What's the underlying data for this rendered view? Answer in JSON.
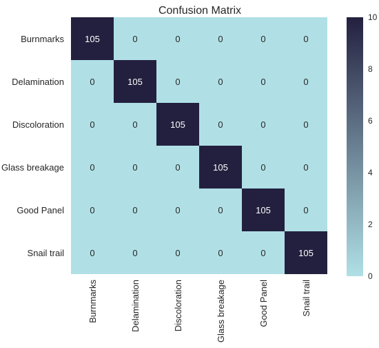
{
  "chart_data": {
    "type": "heatmap",
    "title": "Confusion Matrix",
    "row_labels": [
      "Burnmarks",
      "Delamination",
      "Discoloration",
      "Glass breakage",
      "Good Panel",
      "Snail trail"
    ],
    "col_labels": [
      "Burnmarks",
      "Delamination",
      "Discoloration",
      "Glass breakage",
      "Good Panel",
      "Snail trail"
    ],
    "values": [
      [
        105,
        0,
        0,
        0,
        0,
        0
      ],
      [
        0,
        105,
        0,
        0,
        0,
        0
      ],
      [
        0,
        0,
        105,
        0,
        0,
        0
      ],
      [
        0,
        0,
        0,
        105,
        0,
        0
      ],
      [
        0,
        0,
        0,
        0,
        105,
        0
      ],
      [
        0,
        0,
        0,
        0,
        0,
        105
      ]
    ],
    "colorbar": {
      "min": 0,
      "max": 10,
      "ticks": [
        0,
        2,
        4,
        6,
        8,
        10
      ],
      "colors": [
        "#b0e0e6",
        "#23203f"
      ]
    },
    "grid": false,
    "legend": "colorbar-right"
  }
}
